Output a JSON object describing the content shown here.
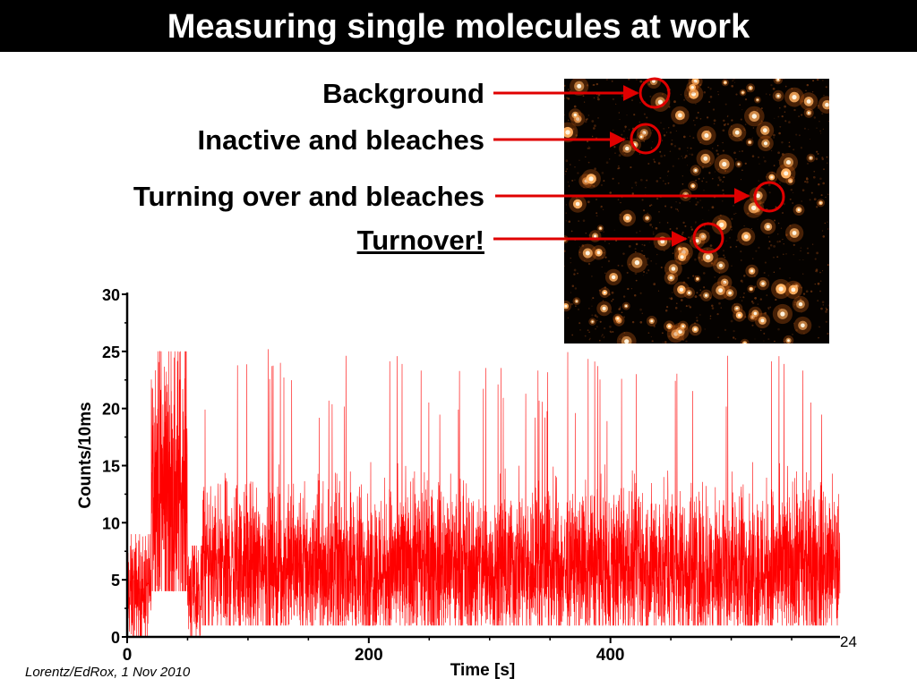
{
  "slide": {
    "title": "Measuring single molecules at work",
    "citation": "Lorentz/EdRox, 1 Nov 2010",
    "page_number": "24"
  },
  "annotations": [
    {
      "label": "Background",
      "underline": false
    },
    {
      "label": "Inactive and bleaches",
      "underline": false
    },
    {
      "label": "Turning over and bleaches",
      "underline": false
    },
    {
      "label": "Turnover!",
      "underline": true
    }
  ],
  "colors": {
    "trace": "#ff0000",
    "arrow": "#e00000",
    "title_bg": "#000000",
    "micrograph_bg": "#050200",
    "spot": "#ffb060"
  },
  "chart_data": {
    "type": "line",
    "xlabel": "Time [s]",
    "ylabel": "Counts/10ms",
    "xlim": [
      0,
      590
    ],
    "ylim": [
      0,
      30
    ],
    "xticks": [
      0,
      200,
      400
    ],
    "yticks": [
      0,
      5,
      10,
      15,
      20,
      25,
      30
    ],
    "series": [
      {
        "segments": [
          {
            "t_start": 0,
            "t_end": 20,
            "mean": 4,
            "min": 0,
            "max": 9
          },
          {
            "t_start": 20,
            "t_end": 50,
            "mean": 13,
            "min": 4,
            "max": 25
          },
          {
            "t_start": 50,
            "t_end": 62,
            "mean": 4,
            "min": 0,
            "max": 8
          },
          {
            "t_start": 62,
            "t_end": 150,
            "mean": 6,
            "min": 1,
            "max": 26
          },
          {
            "t_start": 150,
            "t_end": 590,
            "mean": 6,
            "min": 1,
            "max": 25
          }
        ]
      }
    ]
  }
}
